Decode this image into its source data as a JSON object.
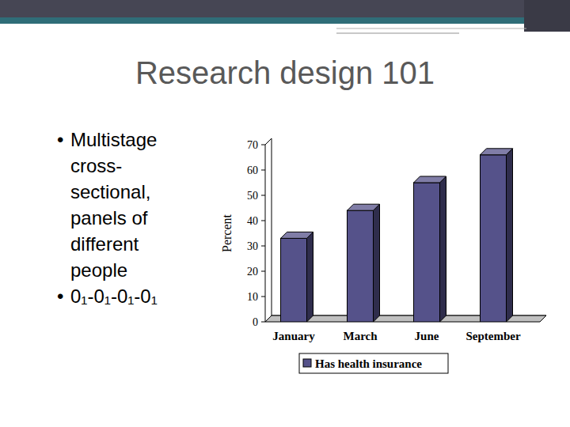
{
  "slide": {
    "title": "Research design 101",
    "bullets": [
      "Multistage cross-sectional, panels of different people",
      "0₁-0₁-0₁-0₁"
    ]
  },
  "chart_data": {
    "type": "bar",
    "y_label": "Percent",
    "categories": [
      "January",
      "March",
      "June",
      "September"
    ],
    "series": [
      {
        "name": "Has health insurance",
        "color": "#55528a",
        "values": [
          33,
          44,
          55,
          66
        ]
      }
    ],
    "ylim": [
      0,
      70
    ],
    "yticks": [
      0,
      10,
      20,
      30,
      40,
      50,
      60,
      70
    ],
    "grid": false,
    "legend": "bottom"
  }
}
